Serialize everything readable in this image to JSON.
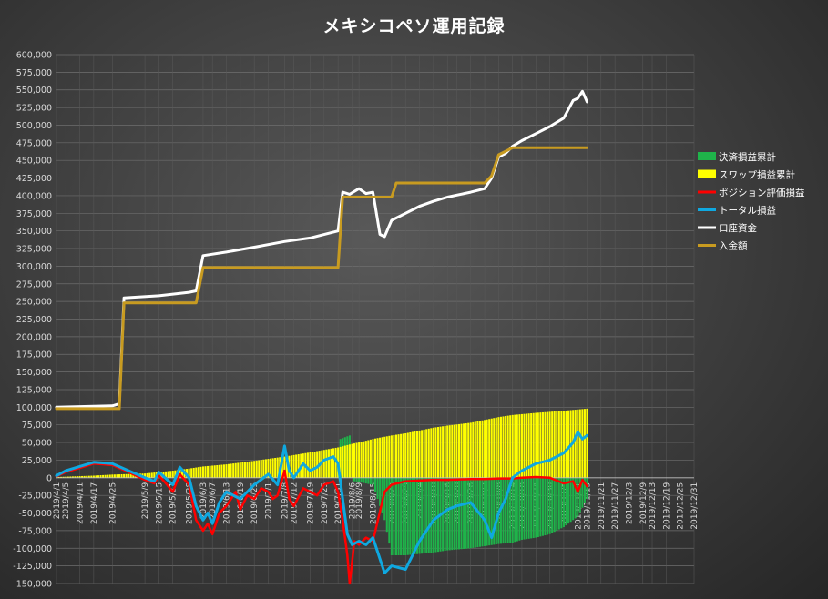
{
  "chart_data": {
    "type": "line",
    "title": "メキシコペソ運用記録",
    "ylim": [
      -150000,
      600000
    ],
    "yticks": [
      "600,000",
      "575,000",
      "550,000",
      "525,000",
      "500,000",
      "475,000",
      "450,000",
      "425,000",
      "400,000",
      "375,000",
      "350,000",
      "325,000",
      "300,000",
      "275,000",
      "250,000",
      "225,000",
      "200,000",
      "175,000",
      "150,000",
      "125,000",
      "100,000",
      "75,000",
      "50,000",
      "25,000",
      "0",
      "-25,000",
      "-50,000",
      "-75,000",
      "-100,000",
      "-125,000",
      "-150,000"
    ],
    "xlim": [
      "2019/4/1",
      "2019/12/31"
    ],
    "xticks": [
      "2019/4/1",
      "2019/4/5",
      "2019/4/11",
      "2019/4/17",
      "2019/4/25",
      "2019/5/9",
      "2019/5/15",
      "2019/5/21",
      "2019/5/28",
      "2019/6/3",
      "2019/6/7",
      "2019/6/13",
      "2019/6/19",
      "2019/6/25",
      "2019/7/1",
      "2019/7/8",
      "2019/7/12",
      "2019/7/19",
      "2019/7/25",
      "2019/7/31",
      "2019/8/6",
      "2019/8/9",
      "2019/8/15",
      "2019/8/23",
      "2019/8/29",
      "2019/9/4",
      "2019/9/10",
      "2019/9/16",
      "2019/9/20",
      "2019/9/26",
      "2019/10/2",
      "2019/10/8",
      "2019/10/14",
      "2019/10/18",
      "2019/10/24",
      "2019/10/30",
      "2019/11/5",
      "2019/11/11",
      "2019/11/15",
      "2019/11/21",
      "2019/11/27",
      "2019/12/3",
      "2019/12/9",
      "2019/12/13",
      "2019/12/19",
      "2019/12/25",
      "2019/12/31"
    ],
    "legend_position": "right",
    "grid": true,
    "series": [
      {
        "name": "決済損益累計",
        "kind": "bar",
        "color": "#1fb34a",
        "points": [
          [
            "2019/4/1",
            0
          ],
          [
            "2019/7/25",
            0
          ],
          [
            "2019/7/26",
            40000
          ],
          [
            "2019/7/31",
            40000
          ],
          [
            "2019/8/1",
            55000
          ],
          [
            "2019/8/5",
            60000
          ],
          [
            "2019/8/6",
            0
          ],
          [
            "2019/8/7",
            -5000
          ],
          [
            "2019/8/15",
            -10000
          ],
          [
            "2019/8/20",
            -60000
          ],
          [
            "2019/8/23",
            -110000
          ],
          [
            "2019/8/29",
            -110000
          ],
          [
            "2019/9/4",
            -108000
          ],
          [
            "2019/9/10",
            -106000
          ],
          [
            "2019/9/16",
            -103000
          ],
          [
            "2019/9/26",
            -100000
          ],
          [
            "2019/10/2",
            -97000
          ],
          [
            "2019/10/8",
            -94000
          ],
          [
            "2019/10/14",
            -92000
          ],
          [
            "2019/10/18",
            -88000
          ],
          [
            "2019/10/24",
            -85000
          ],
          [
            "2019/10/30",
            -80000
          ],
          [
            "2019/11/5",
            -70000
          ],
          [
            "2019/11/11",
            -55000
          ],
          [
            "2019/11/15",
            -30000
          ]
        ]
      },
      {
        "name": "スワップ損益累計",
        "kind": "bar",
        "color": "#ffff00",
        "points": [
          [
            "2019/4/1",
            1000
          ],
          [
            "2019/4/17",
            3000
          ],
          [
            "2019/4/25",
            4500
          ],
          [
            "2019/5/9",
            6000
          ],
          [
            "2019/5/15",
            8000
          ],
          [
            "2019/5/21",
            10000
          ],
          [
            "2019/5/28",
            13000
          ],
          [
            "2019/6/3",
            16000
          ],
          [
            "2019/6/13",
            19000
          ],
          [
            "2019/6/25",
            24000
          ],
          [
            "2019/7/8",
            30000
          ],
          [
            "2019/7/19",
            36000
          ],
          [
            "2019/7/31",
            43000
          ],
          [
            "2019/8/6",
            48000
          ],
          [
            "2019/8/9",
            50000
          ],
          [
            "2019/8/15",
            55000
          ],
          [
            "2019/8/23",
            60000
          ],
          [
            "2019/8/29",
            63000
          ],
          [
            "2019/9/4",
            67000
          ],
          [
            "2019/9/10",
            71000
          ],
          [
            "2019/9/16",
            74000
          ],
          [
            "2019/9/26",
            78000
          ],
          [
            "2019/10/2",
            82000
          ],
          [
            "2019/10/8",
            86000
          ],
          [
            "2019/10/14",
            89000
          ],
          [
            "2019/10/24",
            92000
          ],
          [
            "2019/11/5",
            95000
          ],
          [
            "2019/11/15",
            98000
          ]
        ]
      },
      {
        "name": "ポジション評価損益",
        "kind": "line",
        "color": "#ff0000",
        "width": 2.5,
        "points": [
          [
            "2019/4/1",
            2000
          ],
          [
            "2019/4/5",
            8000
          ],
          [
            "2019/4/11",
            14000
          ],
          [
            "2019/4/17",
            20000
          ],
          [
            "2019/4/25",
            18000
          ],
          [
            "2019/5/2",
            8000
          ],
          [
            "2019/5/9",
            -3000
          ],
          [
            "2019/5/13",
            -8000
          ],
          [
            "2019/5/15",
            3000
          ],
          [
            "2019/5/18",
            -8000
          ],
          [
            "2019/5/21",
            -20000
          ],
          [
            "2019/5/24",
            5000
          ],
          [
            "2019/5/28",
            -10000
          ],
          [
            "2019/5/31",
            -60000
          ],
          [
            "2019/6/3",
            -75000
          ],
          [
            "2019/6/5",
            -65000
          ],
          [
            "2019/6/7",
            -80000
          ],
          [
            "2019/6/10",
            -50000
          ],
          [
            "2019/6/13",
            -40000
          ],
          [
            "2019/6/17",
            -20000
          ],
          [
            "2019/6/19",
            -45000
          ],
          [
            "2019/6/22",
            -25000
          ],
          [
            "2019/6/25",
            -30000
          ],
          [
            "2019/6/28",
            -15000
          ],
          [
            "2019/7/1",
            -20000
          ],
          [
            "2019/7/3",
            -30000
          ],
          [
            "2019/7/5",
            -25000
          ],
          [
            "2019/7/8",
            10000
          ],
          [
            "2019/7/10",
            -30000
          ],
          [
            "2019/7/12",
            -40000
          ],
          [
            "2019/7/16",
            -15000
          ],
          [
            "2019/7/19",
            -20000
          ],
          [
            "2019/7/22",
            -25000
          ],
          [
            "2019/7/25",
            -10000
          ],
          [
            "2019/7/29",
            -5000
          ],
          [
            "2019/7/31",
            -20000
          ],
          [
            "2019/8/2",
            -60000
          ],
          [
            "2019/8/4",
            -110000
          ],
          [
            "2019/8/5",
            -150000
          ],
          [
            "2019/8/6",
            -120000
          ],
          [
            "2019/8/7",
            -90000
          ],
          [
            "2019/8/9",
            -95000
          ],
          [
            "2019/8/12",
            -85000
          ],
          [
            "2019/8/15",
            -90000
          ],
          [
            "2019/8/20",
            -20000
          ],
          [
            "2019/8/23",
            -10000
          ],
          [
            "2019/8/29",
            -5000
          ],
          [
            "2019/9/4",
            -4000
          ],
          [
            "2019/9/10",
            -3000
          ],
          [
            "2019/9/16",
            -3000
          ],
          [
            "2019/9/26",
            -2000
          ],
          [
            "2019/10/2",
            -2000
          ],
          [
            "2019/10/8",
            -1000
          ],
          [
            "2019/10/14",
            -1000
          ],
          [
            "2019/10/18",
            0
          ],
          [
            "2019/10/24",
            1000
          ],
          [
            "2019/10/30",
            0
          ],
          [
            "2019/11/5",
            -8000
          ],
          [
            "2019/11/9",
            -5000
          ],
          [
            "2019/11/11",
            -20000
          ],
          [
            "2019/11/13",
            -3000
          ],
          [
            "2019/11/15",
            -12000
          ]
        ]
      },
      {
        "name": "トータル損益",
        "kind": "line",
        "color": "#0fa8e0",
        "width": 3,
        "points": [
          [
            "2019/4/1",
            3000
          ],
          [
            "2019/4/5",
            10000
          ],
          [
            "2019/4/11",
            16000
          ],
          [
            "2019/4/17",
            22000
          ],
          [
            "2019/4/25",
            20000
          ],
          [
            "2019/5/2",
            10000
          ],
          [
            "2019/5/9",
            0
          ],
          [
            "2019/5/13",
            -5000
          ],
          [
            "2019/5/15",
            8000
          ],
          [
            "2019/5/21",
            -10000
          ],
          [
            "2019/5/24",
            15000
          ],
          [
            "2019/5/28",
            0
          ],
          [
            "2019/5/31",
            -40000
          ],
          [
            "2019/6/3",
            -60000
          ],
          [
            "2019/6/5",
            -50000
          ],
          [
            "2019/6/7",
            -65000
          ],
          [
            "2019/6/10",
            -35000
          ],
          [
            "2019/6/13",
            -20000
          ],
          [
            "2019/6/19",
            -30000
          ],
          [
            "2019/6/25",
            -10000
          ],
          [
            "2019/7/1",
            5000
          ],
          [
            "2019/7/5",
            -10000
          ],
          [
            "2019/7/8",
            45000
          ],
          [
            "2019/7/10",
            10000
          ],
          [
            "2019/7/12",
            0
          ],
          [
            "2019/7/16",
            20000
          ],
          [
            "2019/7/19",
            10000
          ],
          [
            "2019/7/22",
            15000
          ],
          [
            "2019/7/25",
            25000
          ],
          [
            "2019/7/29",
            30000
          ],
          [
            "2019/7/31",
            20000
          ],
          [
            "2019/8/2",
            -30000
          ],
          [
            "2019/8/4",
            -80000
          ],
          [
            "2019/8/6",
            -95000
          ],
          [
            "2019/8/9",
            -90000
          ],
          [
            "2019/8/12",
            -95000
          ],
          [
            "2019/8/15",
            -85000
          ],
          [
            "2019/8/20",
            -135000
          ],
          [
            "2019/8/23",
            -125000
          ],
          [
            "2019/8/29",
            -130000
          ],
          [
            "2019/9/4",
            -90000
          ],
          [
            "2019/9/10",
            -60000
          ],
          [
            "2019/9/16",
            -45000
          ],
          [
            "2019/9/20",
            -40000
          ],
          [
            "2019/9/26",
            -35000
          ],
          [
            "2019/10/2",
            -60000
          ],
          [
            "2019/10/5",
            -85000
          ],
          [
            "2019/10/8",
            -50000
          ],
          [
            "2019/10/11",
            -30000
          ],
          [
            "2019/10/14",
            0
          ],
          [
            "2019/10/18",
            10000
          ],
          [
            "2019/10/24",
            20000
          ],
          [
            "2019/10/30",
            25000
          ],
          [
            "2019/11/5",
            35000
          ],
          [
            "2019/11/9",
            50000
          ],
          [
            "2019/11/11",
            65000
          ],
          [
            "2019/11/13",
            55000
          ],
          [
            "2019/11/15",
            60000
          ]
        ]
      },
      {
        "name": "口座資金",
        "kind": "line",
        "color": "#ffffff",
        "width": 3,
        "points": [
          [
            "2019/4/1",
            100000
          ],
          [
            "2019/4/25",
            102000
          ],
          [
            "2019/4/28",
            105000
          ],
          [
            "2019/4/30",
            255000
          ],
          [
            "2019/5/15",
            258000
          ],
          [
            "2019/5/28",
            263000
          ],
          [
            "2019/5/31",
            265000
          ],
          [
            "2019/6/3",
            315000
          ],
          [
            "2019/6/13",
            320000
          ],
          [
            "2019/6/25",
            327000
          ],
          [
            "2019/7/8",
            335000
          ],
          [
            "2019/7/19",
            340000
          ],
          [
            "2019/7/31",
            350000
          ],
          [
            "2019/8/2",
            405000
          ],
          [
            "2019/8/5",
            402000
          ],
          [
            "2019/8/9",
            410000
          ],
          [
            "2019/8/12",
            403000
          ],
          [
            "2019/8/15",
            405000
          ],
          [
            "2019/8/18",
            345000
          ],
          [
            "2019/8/20",
            342000
          ],
          [
            "2019/8/23",
            365000
          ],
          [
            "2019/8/29",
            375000
          ],
          [
            "2019/9/4",
            385000
          ],
          [
            "2019/9/10",
            392000
          ],
          [
            "2019/9/16",
            398000
          ],
          [
            "2019/9/26",
            405000
          ],
          [
            "2019/10/2",
            410000
          ],
          [
            "2019/10/5",
            425000
          ],
          [
            "2019/10/8",
            455000
          ],
          [
            "2019/10/11",
            460000
          ],
          [
            "2019/10/14",
            470000
          ],
          [
            "2019/10/18",
            478000
          ],
          [
            "2019/10/24",
            488000
          ],
          [
            "2019/10/30",
            498000
          ],
          [
            "2019/11/5",
            510000
          ],
          [
            "2019/11/9",
            535000
          ],
          [
            "2019/11/11",
            538000
          ],
          [
            "2019/11/13",
            548000
          ],
          [
            "2019/11/15",
            533000
          ]
        ]
      },
      {
        "name": "入金額",
        "kind": "line",
        "color": "#c89b20",
        "width": 3,
        "points": [
          [
            "2019/4/1",
            98000
          ],
          [
            "2019/4/28",
            98000
          ],
          [
            "2019/4/30",
            248000
          ],
          [
            "2019/5/31",
            248000
          ],
          [
            "2019/6/3",
            298000
          ],
          [
            "2019/7/31",
            298000
          ],
          [
            "2019/8/2",
            398000
          ],
          [
            "2019/8/23",
            398000
          ],
          [
            "2019/8/25",
            418000
          ],
          [
            "2019/10/2",
            418000
          ],
          [
            "2019/10/5",
            428000
          ],
          [
            "2019/10/8",
            458000
          ],
          [
            "2019/10/14",
            468000
          ],
          [
            "2019/11/15",
            468000
          ]
        ]
      }
    ]
  }
}
